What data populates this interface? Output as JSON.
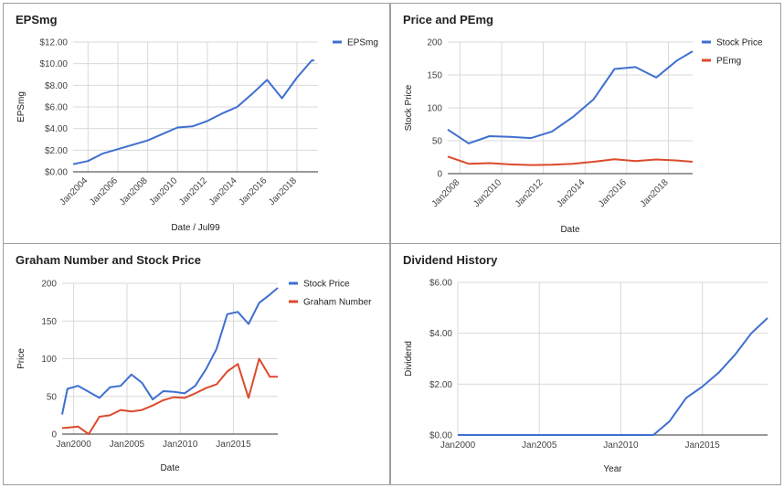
{
  "colors": {
    "blue": "#3f6fcf",
    "red": "#dc4a2e",
    "grid": "#d9d9d9",
    "axis": "#333333"
  },
  "chart_data": [
    {
      "id": "p1",
      "type": "line",
      "title": "EPSmg",
      "xlabel": "Date / Jul99",
      "ylabel": "EPSmg",
      "x_type": "date",
      "xlim": [
        "2003-01-01",
        "2019-06-01"
      ],
      "ylim": [
        0,
        12
      ],
      "y_ticks": [
        0,
        2,
        4,
        6,
        8,
        10,
        12
      ],
      "y_tick_labels": [
        "$0.00",
        "$2.00",
        "$4.00",
        "$6.00",
        "$8.00",
        "$10.00",
        "$12.00"
      ],
      "x_ticks": [
        "2004-01-01",
        "2006-01-01",
        "2008-01-01",
        "2010-01-01",
        "2012-01-01",
        "2014-01-01",
        "2016-01-01",
        "2018-01-01"
      ],
      "x_tick_labels": [
        "Jan2004",
        "Jan2006",
        "Jan2008",
        "Jan2010",
        "Jan2012",
        "Jan2014",
        "Jan2016",
        "Jan2018"
      ],
      "x_tick_rotate": true,
      "grid": true,
      "legend": "right",
      "series": [
        {
          "name": "EPSmg",
          "color": "#3f6fcf",
          "x": [
            "2003-01-01",
            "2004-01-01",
            "2005-01-01",
            "2006-01-01",
            "2007-01-01",
            "2008-01-01",
            "2009-01-01",
            "2010-01-01",
            "2011-01-01",
            "2012-01-01",
            "2013-01-01",
            "2014-01-01",
            "2015-01-01",
            "2016-01-01",
            "2017-01-01",
            "2018-01-01",
            "2019-01-01",
            "2019-03-01"
          ],
          "y": [
            0.7,
            1.0,
            1.7,
            2.1,
            2.5,
            2.9,
            3.5,
            4.1,
            4.2,
            4.7,
            5.4,
            6.0,
            7.2,
            8.5,
            6.8,
            8.7,
            10.3,
            10.3
          ]
        }
      ]
    },
    {
      "id": "p2",
      "type": "line",
      "title": "Price and PEmg",
      "xlabel": "Date",
      "ylabel": "Stock Price",
      "x_type": "date",
      "xlim": [
        "2007-06-01",
        "2019-03-01"
      ],
      "ylim": [
        0,
        200
      ],
      "y_ticks": [
        0,
        50,
        100,
        150,
        200
      ],
      "y_tick_labels": [
        "0",
        "50",
        "100",
        "150",
        "200"
      ],
      "x_ticks": [
        "2008-01-01",
        "2010-01-01",
        "2012-01-01",
        "2014-01-01",
        "2016-01-01",
        "2018-01-01"
      ],
      "x_tick_labels": [
        "Jan2008",
        "Jan2010",
        "Jan2012",
        "Jan2014",
        "Jan2016",
        "Jan2018"
      ],
      "x_tick_rotate": true,
      "grid": true,
      "legend": "right",
      "series": [
        {
          "name": "Stock Price",
          "color": "#3f6fcf",
          "x": [
            "2007-06-01",
            "2008-06-01",
            "2009-06-01",
            "2010-06-01",
            "2011-06-01",
            "2012-06-01",
            "2013-06-01",
            "2014-06-01",
            "2015-06-01",
            "2016-06-01",
            "2017-06-01",
            "2018-06-01",
            "2019-03-01"
          ],
          "y": [
            67,
            46,
            57,
            56,
            54,
            64,
            86,
            113,
            159,
            162,
            146,
            172,
            186
          ]
        },
        {
          "name": "PEmg",
          "color": "#dc4a2e",
          "x": [
            "2007-06-01",
            "2008-06-01",
            "2009-06-01",
            "2010-06-01",
            "2011-06-01",
            "2012-06-01",
            "2013-06-01",
            "2014-06-01",
            "2015-06-01",
            "2016-06-01",
            "2017-06-01",
            "2018-06-01",
            "2019-03-01"
          ],
          "y": [
            26,
            15,
            16,
            14,
            13,
            13.5,
            15,
            18,
            22,
            19,
            21.5,
            20,
            18
          ]
        }
      ]
    },
    {
      "id": "p3",
      "type": "line",
      "title": "Graham Number and Stock Price",
      "xlabel": "Date",
      "ylabel": "Price",
      "x_type": "date",
      "xlim": [
        "1998-12-01",
        "2019-03-01"
      ],
      "ylim": [
        0,
        200
      ],
      "y_ticks": [
        0,
        50,
        100,
        150,
        200
      ],
      "y_tick_labels": [
        "0",
        "50",
        "100",
        "150",
        "200"
      ],
      "x_ticks": [
        "2000-01-01",
        "2005-01-01",
        "2010-01-01",
        "2015-01-01"
      ],
      "x_tick_labels": [
        "Jan2000",
        "Jan2005",
        "Jan2010",
        "Jan2015"
      ],
      "x_tick_rotate": false,
      "grid": true,
      "legend": "right",
      "series": [
        {
          "name": "Stock Price",
          "color": "#3f6fcf",
          "x": [
            "1998-12-01",
            "1999-06-01",
            "2000-06-01",
            "2001-06-01",
            "2002-06-01",
            "2003-06-01",
            "2004-06-01",
            "2005-06-01",
            "2006-06-01",
            "2007-06-01",
            "2008-06-01",
            "2009-06-01",
            "2010-06-01",
            "2011-06-01",
            "2012-06-01",
            "2013-06-01",
            "2014-06-01",
            "2015-06-01",
            "2016-06-01",
            "2017-06-01",
            "2018-06-01",
            "2019-03-01"
          ],
          "y": [
            26,
            60,
            64,
            56,
            48,
            62,
            64,
            79,
            68,
            46,
            57,
            56,
            54,
            64,
            86,
            113,
            159,
            162,
            146,
            174,
            185,
            194
          ]
        },
        {
          "name": "Graham Number",
          "color": "#dc4a2e",
          "x": [
            "1998-12-01",
            "1999-06-01",
            "2000-06-01",
            "2001-06-01",
            "2002-06-01",
            "2003-06-01",
            "2004-06-01",
            "2005-06-01",
            "2006-06-01",
            "2007-06-01",
            "2008-06-01",
            "2009-06-01",
            "2010-06-01",
            "2011-06-01",
            "2012-06-01",
            "2013-06-01",
            "2014-06-01",
            "2015-06-01",
            "2016-06-01",
            "2017-06-01",
            "2018-06-01",
            "2019-03-01"
          ],
          "y": [
            8,
            8.5,
            10,
            0,
            23,
            25,
            32,
            30,
            32,
            38,
            45,
            49,
            48,
            54,
            61,
            66,
            83,
            93,
            48,
            100,
            76,
            76
          ]
        }
      ]
    },
    {
      "id": "p4",
      "type": "line",
      "title": "Dividend History",
      "xlabel": "Year",
      "ylabel": "Dividend",
      "x_type": "date",
      "xlim": [
        "2000-01-01",
        "2019-01-01"
      ],
      "ylim": [
        0,
        6
      ],
      "y_ticks": [
        0,
        2,
        4,
        6
      ],
      "y_tick_labels": [
        "$0.00",
        "$2.00",
        "$4.00",
        "$6.00"
      ],
      "x_ticks": [
        "2000-01-01",
        "2005-01-01",
        "2010-01-01",
        "2015-01-01"
      ],
      "x_tick_labels": [
        "Jan2000",
        "Jan2005",
        "Jan2010",
        "Jan2015"
      ],
      "x_tick_rotate": false,
      "grid": true,
      "legend": "none",
      "series": [
        {
          "name": "",
          "color": "#3f6fcf",
          "x": [
            "2000-01-01",
            "2001-01-01",
            "2002-01-01",
            "2003-01-01",
            "2004-01-01",
            "2005-01-01",
            "2006-01-01",
            "2007-01-01",
            "2008-01-01",
            "2009-01-01",
            "2010-01-01",
            "2011-01-01",
            "2012-01-01",
            "2013-01-01",
            "2014-01-01",
            "2015-01-01",
            "2016-01-01",
            "2017-01-01",
            "2018-01-01",
            "2019-01-01"
          ],
          "y": [
            0,
            0,
            0,
            0,
            0,
            0,
            0,
            0,
            0,
            0,
            0,
            0,
            0,
            0.55,
            1.45,
            1.9,
            2.45,
            3.15,
            4.0,
            4.6
          ]
        }
      ]
    }
  ]
}
